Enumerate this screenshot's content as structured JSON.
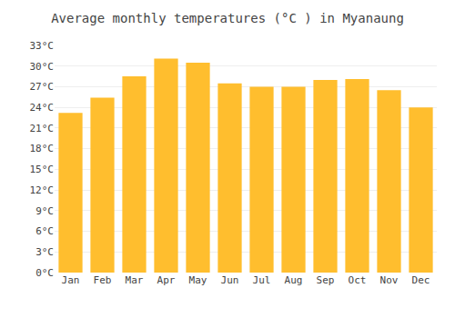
{
  "chart_data": {
    "type": "bar",
    "title": "Average monthly temperatures (°C ) in Myanaung",
    "categories": [
      "Jan",
      "Feb",
      "Mar",
      "Apr",
      "May",
      "Jun",
      "Jul",
      "Aug",
      "Sep",
      "Oct",
      "Nov",
      "Dec"
    ],
    "values": [
      23.2,
      25.4,
      28.5,
      31.1,
      30.5,
      27.5,
      27.0,
      27.0,
      28.0,
      28.1,
      26.5,
      24.0
    ],
    "color": "#FFBE2E",
    "ylim": [
      0,
      33
    ],
    "yticks": [
      {
        "value": 0,
        "label": "0°C"
      },
      {
        "value": 3,
        "label": "3°C"
      },
      {
        "value": 6,
        "label": "6°C"
      },
      {
        "value": 9,
        "label": "9°C"
      },
      {
        "value": 12,
        "label": "12°C"
      },
      {
        "value": 15,
        "label": "15°C"
      },
      {
        "value": 18,
        "label": "18°C"
      },
      {
        "value": 21,
        "label": "21°C"
      },
      {
        "value": 24,
        "label": "24°C"
      },
      {
        "value": 27,
        "label": "27°C"
      },
      {
        "value": 30,
        "label": "30°C"
      },
      {
        "value": 33,
        "label": "33°C"
      }
    ],
    "grid": true
  }
}
